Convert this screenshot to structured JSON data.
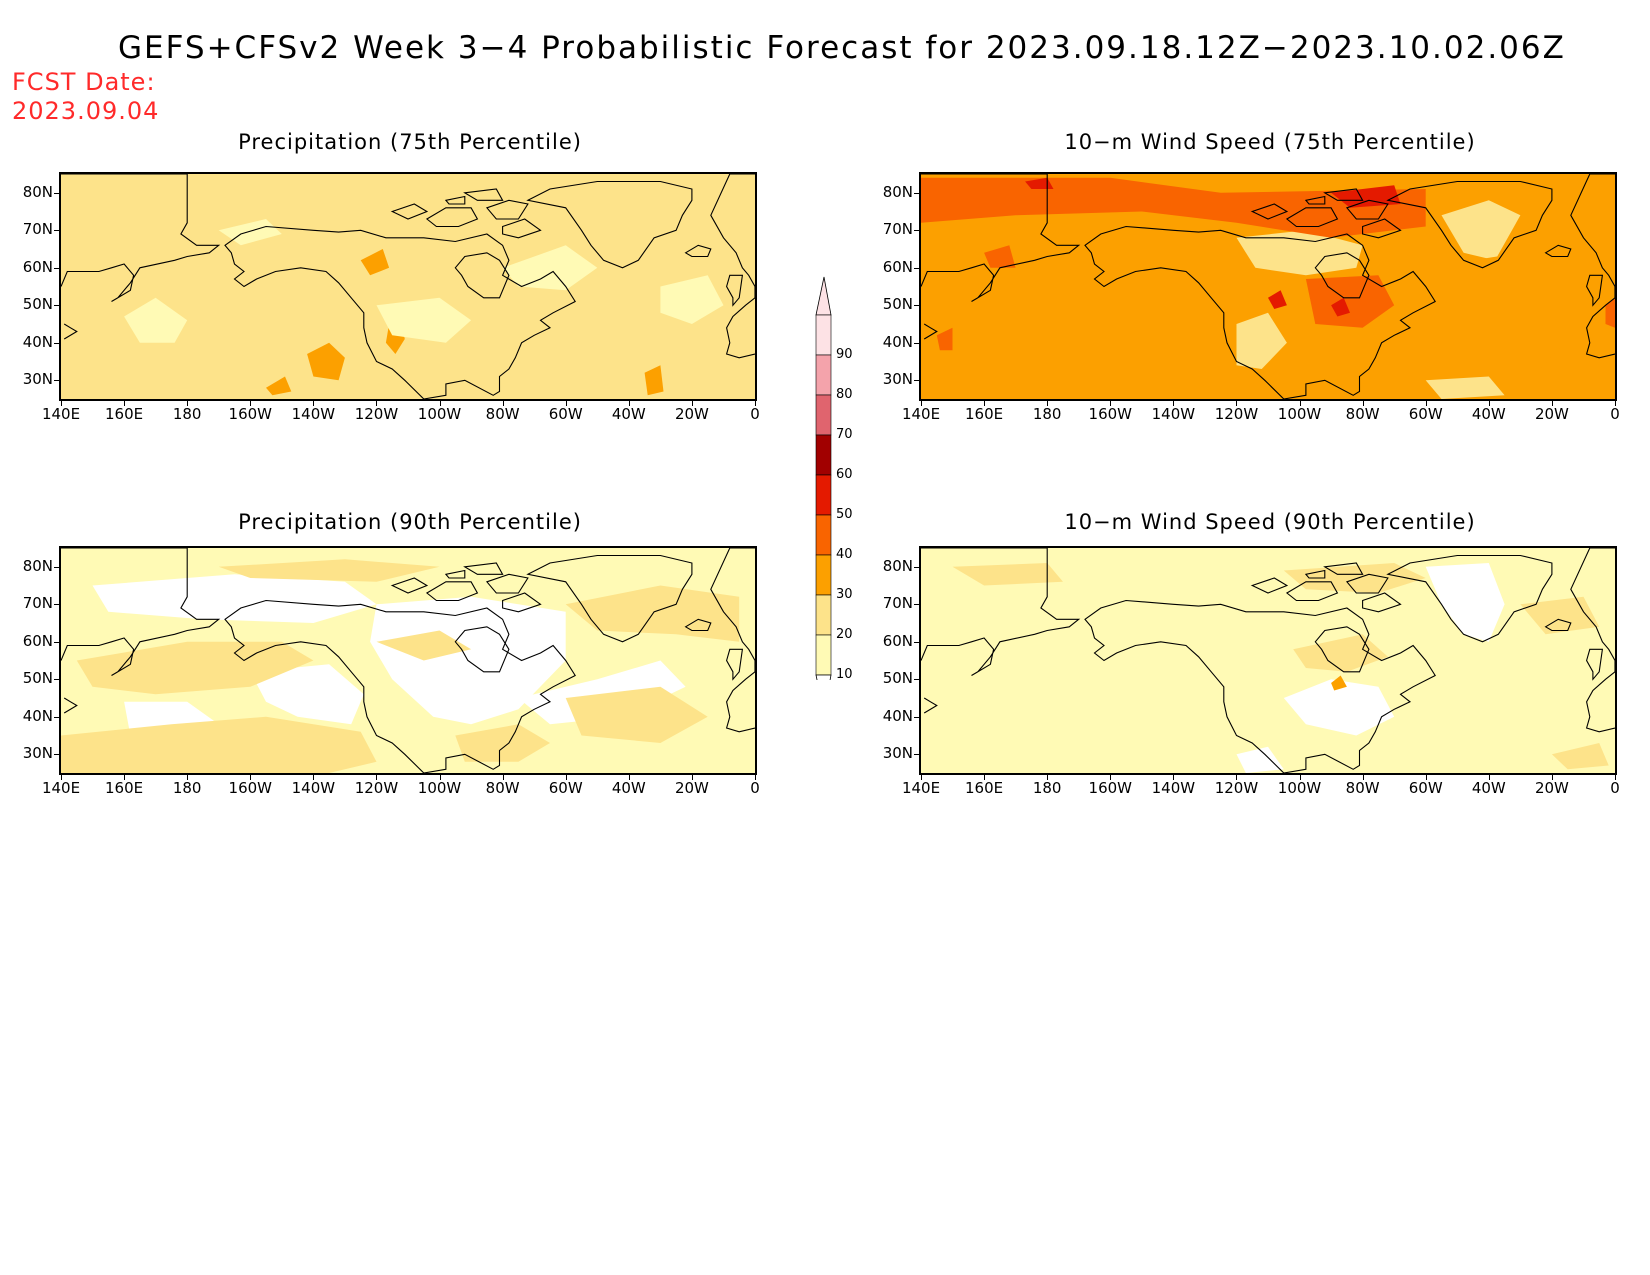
{
  "title": "GEFS+CFSv2 Week 3−4 Probabilistic Forecast for 2023.09.18.12Z−2023.10.02.06Z",
  "fcst_date": {
    "label": "FCST Date:",
    "value": "2023.09.04"
  },
  "panels": [
    {
      "title": "Precipitation (75th Percentile)",
      "variant": "p75"
    },
    {
      "title": "10−m Wind Speed (75th Percentile)",
      "variant": "w75"
    },
    {
      "title": "Precipitation (90th Percentile)",
      "variant": "p90"
    },
    {
      "title": "10−m Wind Speed (90th Percentile)",
      "variant": "w90"
    }
  ],
  "axes": {
    "lat_labels": [
      "80N",
      "70N",
      "60N",
      "50N",
      "40N",
      "30N"
    ],
    "lon_labels": [
      "140E",
      "160E",
      "180",
      "160W",
      "140W",
      "120W",
      "100W",
      "80W",
      "60W",
      "40W",
      "20W",
      "0"
    ],
    "lat_values": [
      80,
      70,
      60,
      50,
      40,
      30
    ],
    "lon_values": [
      140,
      160,
      180,
      200,
      220,
      240,
      260,
      280,
      300,
      320,
      340,
      360
    ],
    "lat_range": [
      25,
      85
    ],
    "lon_range": [
      140,
      360
    ]
  },
  "legend": {
    "levels": [
      "10",
      "20",
      "30",
      "40",
      "50",
      "60",
      "70",
      "80",
      "90"
    ],
    "colors": [
      "#fffab5",
      "#fde38a",
      "#fca000",
      "#f96400",
      "#e41a00",
      "#a10000",
      "#e0646e",
      "#f4a3ab",
      "#fde2e5"
    ]
  },
  "colors": {
    "title": "#000000",
    "fcst_date": "#ff2a2a",
    "coast": "#000000",
    "p75_base": "#fde38a",
    "w75_base": "#fca000",
    "p90_base": "#fffab5",
    "w90_base": "#fffab5"
  }
}
